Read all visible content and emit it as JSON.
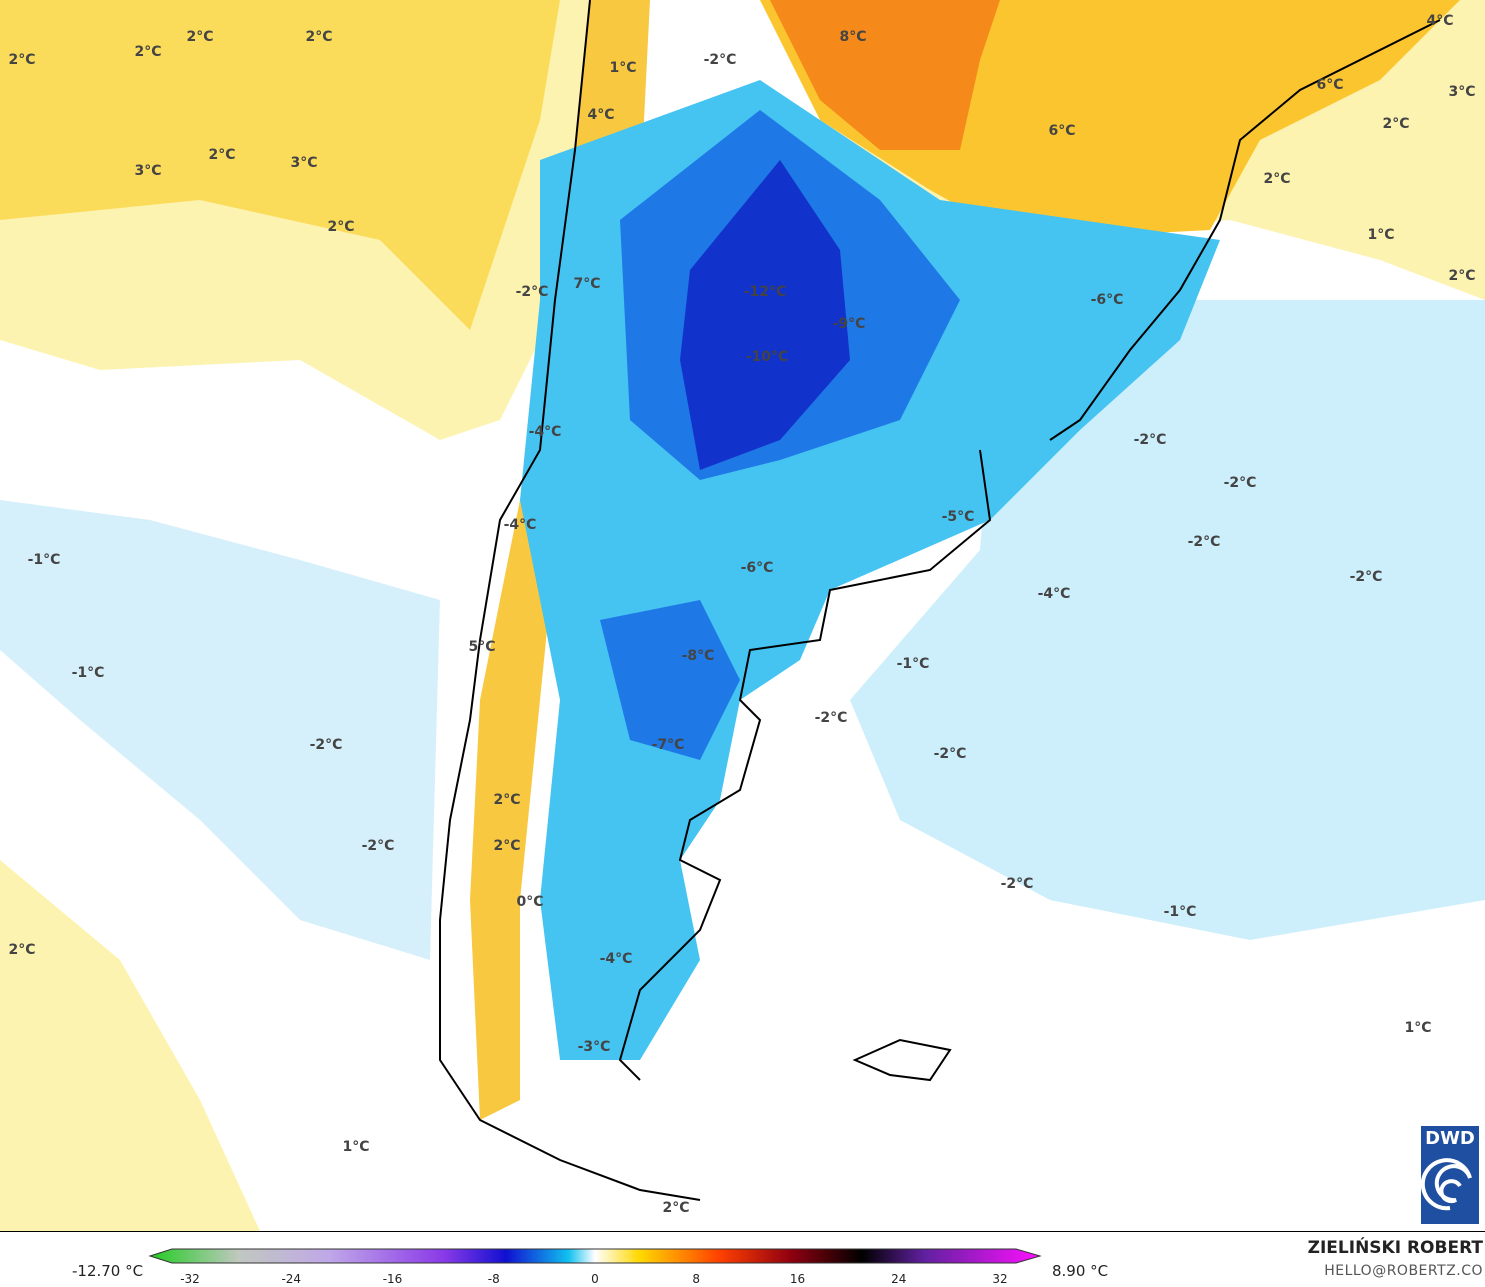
{
  "map": {
    "model_logo": "DWD",
    "contour_labels": [
      "2°C",
      "2°C",
      "2°C",
      "2°C",
      "3°C",
      "2°C",
      "3°C",
      "2°C",
      "1°C",
      "-2°C",
      "8°C",
      "4°C",
      "6°C",
      "3°C",
      "2°C",
      "6°C",
      "4°C",
      "2°C",
      "1°C",
      "2°C",
      "7°C",
      "-2°C",
      "-12°C",
      "-9°C",
      "-6°C",
      "-10°C",
      "-4°C",
      "-2°C",
      "-2°C",
      "-5°C",
      "-4°C",
      "-2°C",
      "-1°C",
      "-6°C",
      "-2°C",
      "-4°C",
      "5°C",
      "-8°C",
      "-1°C",
      "-1°C",
      "-2°C",
      "-2°C",
      "-7°C",
      "-2°C",
      "2°C",
      "-2°C",
      "2°C",
      "-2°C",
      "0°C",
      "-1°C",
      "2°C",
      "-4°C",
      "1°C",
      "-3°C",
      "1°C",
      "2°C"
    ],
    "colors": {
      "warm_pale": "#fdf3b0",
      "warm": "#fbd84a",
      "orange": "#f7a020",
      "hot": "#f07010",
      "cold_pale": "#d6f0fb",
      "cold": "#8fd8f5",
      "blue": "#29b6f0",
      "deep_blue": "#1a6fe0",
      "deepest_blue": "#1230d0"
    }
  },
  "legend": {
    "min_label": "-12.70 °C",
    "max_label": "8.90 °C",
    "ticks": [
      "-32",
      "-24",
      "-16",
      "-8",
      "0",
      "8",
      "16",
      "24",
      "32"
    ],
    "range": [
      -32,
      32
    ]
  },
  "credits": {
    "author": "ZIELIŃSKI ROBERT",
    "email": "HELLO@ROBERTZ.CO"
  }
}
